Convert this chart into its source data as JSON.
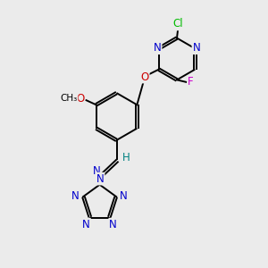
{
  "bg_color": "#ebebeb",
  "bond_color": "#000000",
  "atom_colors": {
    "N": "#0000cc",
    "O": "#cc0000",
    "F": "#cc00cc",
    "Cl": "#00bb00",
    "C": "#000000",
    "H": "#008080"
  },
  "font_size": 8.5,
  "fig_size": [
    3.0,
    3.0
  ],
  "dpi": 100
}
